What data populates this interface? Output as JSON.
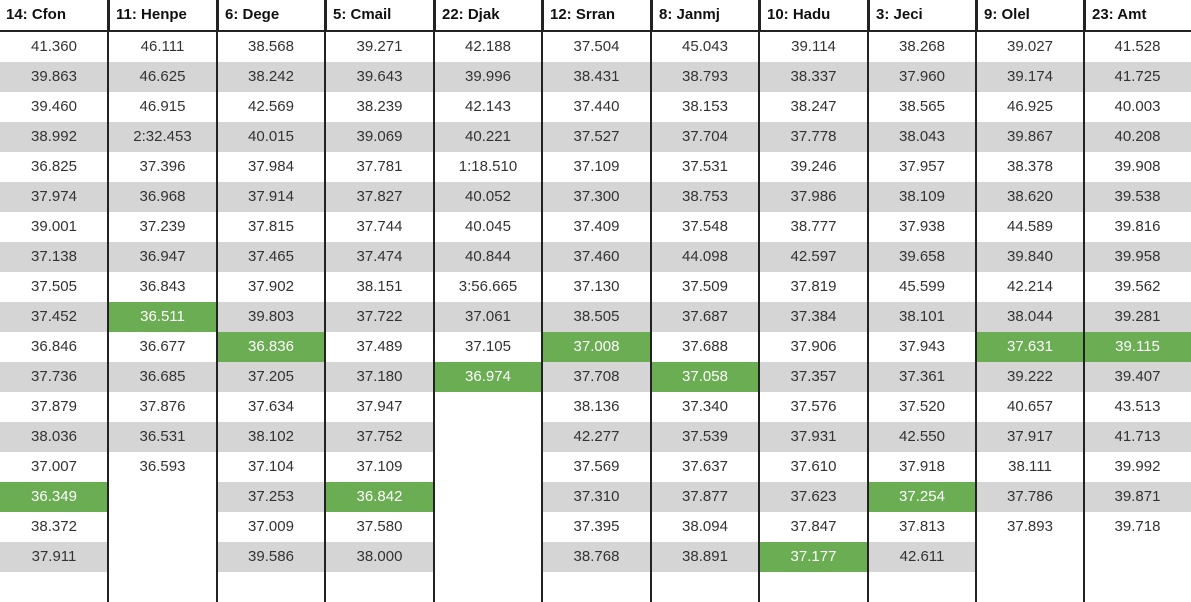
{
  "columns": [
    {
      "header": "14: Cfon",
      "best": 16,
      "laps": [
        "41.360",
        "39.863",
        "39.460",
        "38.992",
        "36.825",
        "37.974",
        "39.001",
        "37.138",
        "37.505",
        "37.452",
        "36.846",
        "37.736",
        "37.879",
        "38.036",
        "37.007",
        "36.349",
        "38.372",
        "37.911"
      ]
    },
    {
      "header": "11: Henpe",
      "best": 10,
      "laps": [
        "46.111",
        "46.625",
        "46.915",
        "2:32.453",
        "37.396",
        "36.968",
        "37.239",
        "36.947",
        "36.843",
        "36.511",
        "36.677",
        "36.685",
        "37.876",
        "36.531",
        "36.593"
      ]
    },
    {
      "header": "6: Dege",
      "best": 11,
      "laps": [
        "38.568",
        "38.242",
        "42.569",
        "40.015",
        "37.984",
        "37.914",
        "37.815",
        "37.465",
        "37.902",
        "39.803",
        "36.836",
        "37.205",
        "37.634",
        "38.102",
        "37.104",
        "37.253",
        "37.009",
        "39.586"
      ]
    },
    {
      "header": "5: Cmail",
      "best": 16,
      "laps": [
        "39.271",
        "39.643",
        "38.239",
        "39.069",
        "37.781",
        "37.827",
        "37.744",
        "37.474",
        "38.151",
        "37.722",
        "37.489",
        "37.180",
        "37.947",
        "37.752",
        "37.109",
        "36.842",
        "37.580",
        "38.000"
      ]
    },
    {
      "header": "22: Djak",
      "best": 12,
      "laps": [
        "42.188",
        "39.996",
        "42.143",
        "40.221",
        "1:18.510",
        "40.052",
        "40.045",
        "40.844",
        "3:56.665",
        "37.061",
        "37.105",
        "36.974"
      ]
    },
    {
      "header": "12: Srran",
      "best": 11,
      "laps": [
        "37.504",
        "38.431",
        "37.440",
        "37.527",
        "37.109",
        "37.300",
        "37.409",
        "37.460",
        "37.130",
        "38.505",
        "37.008",
        "37.708",
        "38.136",
        "42.277",
        "37.569",
        "37.310",
        "37.395",
        "38.768"
      ]
    },
    {
      "header": "8: Janmj",
      "best": 12,
      "laps": [
        "45.043",
        "38.793",
        "38.153",
        "37.704",
        "37.531",
        "38.753",
        "37.548",
        "44.098",
        "37.509",
        "37.687",
        "37.688",
        "37.058",
        "37.340",
        "37.539",
        "37.637",
        "37.877",
        "38.094",
        "38.891"
      ]
    },
    {
      "header": "10: Hadu",
      "best": 18,
      "laps": [
        "39.114",
        "38.337",
        "38.247",
        "37.778",
        "39.246",
        "37.986",
        "38.777",
        "42.597",
        "37.819",
        "37.384",
        "37.906",
        "37.357",
        "37.576",
        "37.931",
        "37.610",
        "37.623",
        "37.847",
        "37.177"
      ]
    },
    {
      "header": "3: Jeci",
      "best": 16,
      "laps": [
        "38.268",
        "37.960",
        "38.565",
        "38.043",
        "37.957",
        "38.109",
        "37.938",
        "39.658",
        "45.599",
        "38.101",
        "37.943",
        "37.361",
        "37.520",
        "42.550",
        "37.918",
        "37.254",
        "37.813",
        "42.611"
      ]
    },
    {
      "header": "9: Olel",
      "best": 11,
      "laps": [
        "39.027",
        "39.174",
        "46.925",
        "39.867",
        "38.378",
        "38.620",
        "44.589",
        "39.840",
        "42.214",
        "38.044",
        "37.631",
        "39.222",
        "40.657",
        "37.917",
        "38.111",
        "37.786",
        "37.893"
      ]
    },
    {
      "header": "23: Amt",
      "best": 11,
      "laps": [
        "41.528",
        "41.725",
        "40.003",
        "40.208",
        "39.908",
        "39.538",
        "39.816",
        "39.958",
        "39.562",
        "39.281",
        "39.115",
        "39.407",
        "43.513",
        "41.713",
        "39.992",
        "39.871",
        "39.718"
      ]
    }
  ],
  "colors": {
    "band": "#d5d5d5",
    "best": "#6aad53",
    "grid": "#222222"
  }
}
